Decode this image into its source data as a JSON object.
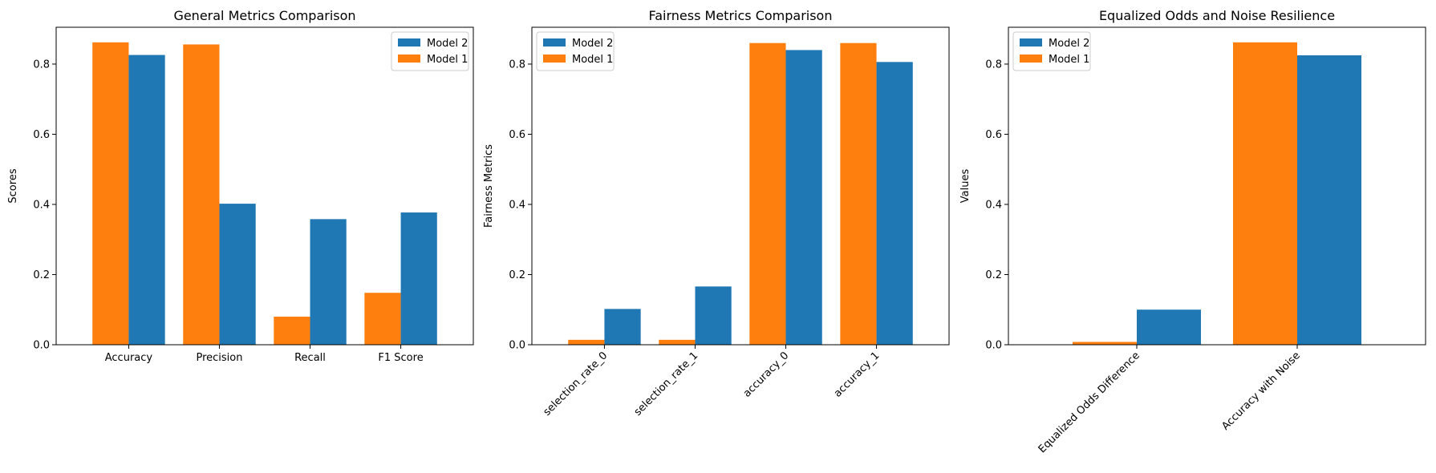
{
  "chart_data": [
    {
      "type": "bar",
      "title": "General Metrics Comparison",
      "xlabel": "",
      "ylabel": "Scores",
      "categories": [
        "Accuracy",
        "Precision",
        "Recall",
        "F1 Score"
      ],
      "series": [
        {
          "name": "Model 1",
          "color": "#ff7f0e",
          "values": [
            0.862,
            0.856,
            0.08,
            0.148
          ]
        },
        {
          "name": "Model 2",
          "color": "#1f77b4",
          "values": [
            0.826,
            0.402,
            0.358,
            0.377
          ]
        }
      ],
      "ylim": [
        0,
        0.905
      ],
      "yticks": [
        "0.0",
        "0.2",
        "0.4",
        "0.6",
        "0.8"
      ],
      "ytick_values": [
        0,
        0.2,
        0.4,
        0.6,
        0.8
      ],
      "xtick_rotation": 0,
      "legend": {
        "placement": "upper right",
        "entries": [
          "Model 2",
          "Model 1"
        ]
      }
    },
    {
      "type": "bar",
      "title": "Fairness Metrics Comparison",
      "xlabel": "",
      "ylabel": "Fairness Metrics",
      "categories": [
        "selection_rate_0",
        "selection_rate_1",
        "accuracy_0",
        "accuracy_1"
      ],
      "series": [
        {
          "name": "Model 1",
          "color": "#ff7f0e",
          "values": [
            0.014,
            0.014,
            0.86,
            0.86
          ]
        },
        {
          "name": "Model 2",
          "color": "#1f77b4",
          "values": [
            0.102,
            0.166,
            0.84,
            0.806
          ]
        }
      ],
      "ylim": [
        0,
        0.905
      ],
      "yticks": [
        "0.0",
        "0.2",
        "0.4",
        "0.6",
        "0.8"
      ],
      "ytick_values": [
        0,
        0.2,
        0.4,
        0.6,
        0.8
      ],
      "xtick_rotation": -45,
      "legend": {
        "placement": "upper left",
        "entries": [
          "Model 2",
          "Model 1"
        ]
      }
    },
    {
      "type": "bar",
      "title": "Equalized Odds and Noise Resilience",
      "xlabel": "",
      "ylabel": "Values",
      "categories": [
        "Equalized Odds Difference",
        "Accuracy with Noise"
      ],
      "series": [
        {
          "name": "Model 1",
          "color": "#ff7f0e",
          "values": [
            0.008,
            0.862
          ]
        },
        {
          "name": "Model 2",
          "color": "#1f77b4",
          "values": [
            0.1,
            0.825
          ]
        }
      ],
      "ylim": [
        0,
        0.905
      ],
      "yticks": [
        "0.0",
        "0.2",
        "0.4",
        "0.6",
        "0.8"
      ],
      "ytick_values": [
        0,
        0.2,
        0.4,
        0.6,
        0.8
      ],
      "xtick_rotation": -45,
      "legend": {
        "placement": "upper left",
        "entries": [
          "Model 2",
          "Model 1"
        ]
      }
    }
  ]
}
